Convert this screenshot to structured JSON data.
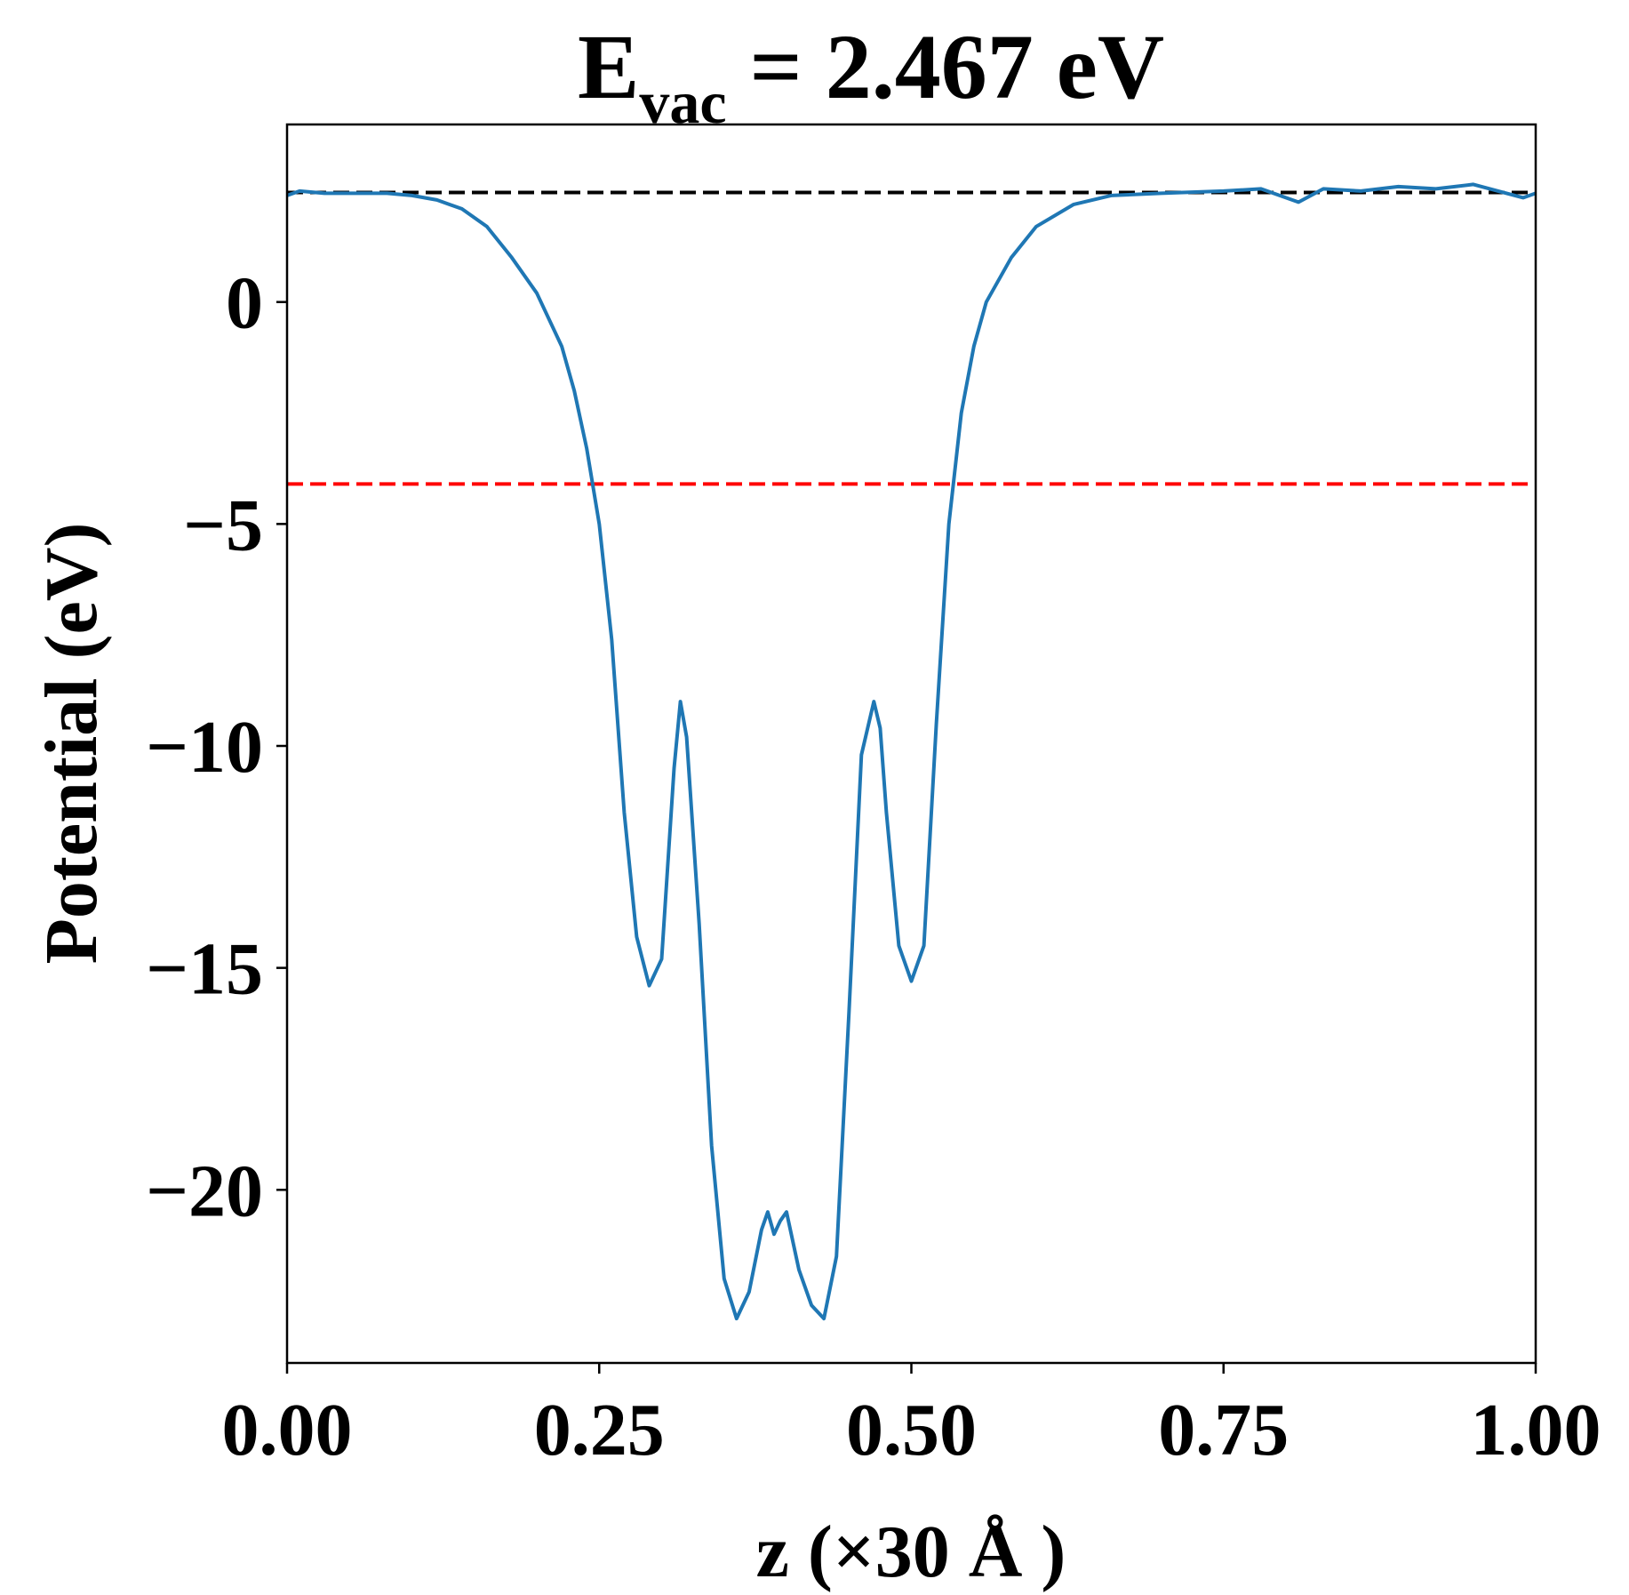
{
  "chart_data": {
    "type": "line",
    "title": {
      "main": "E",
      "subscript": "vac",
      "rest": " = 2.467 eV"
    },
    "xlabel": "z (×30 Å )",
    "ylabel": "Potential (eV)",
    "xlim": [
      0.0,
      1.0
    ],
    "ylim": [
      -23.9,
      4.0
    ],
    "xticks": [
      {
        "value": 0.0,
        "label": "0.00"
      },
      {
        "value": 0.25,
        "label": "0.25"
      },
      {
        "value": 0.5,
        "label": "0.50"
      },
      {
        "value": 0.75,
        "label": "0.75"
      },
      {
        "value": 1.0,
        "label": "1.00"
      }
    ],
    "yticks": [
      {
        "value": 0,
        "label": "0"
      },
      {
        "value": -5,
        "label": "−5"
      },
      {
        "value": -10,
        "label": "−10"
      },
      {
        "value": -15,
        "label": "−15"
      },
      {
        "value": -20,
        "label": "−20"
      }
    ],
    "grid": false,
    "colors": {
      "series": "#1f77b4",
      "vacuum_line": "#000000",
      "fermi_line": "#ff0000",
      "axes": "#000000"
    },
    "reference_lines": [
      {
        "y": 2.467,
        "color": "#000000",
        "style": "dashed"
      },
      {
        "y": -4.1,
        "color": "#ff0000",
        "style": "dashed"
      }
    ],
    "series": [
      {
        "x": [
          0.0,
          0.01,
          0.03,
          0.05,
          0.08,
          0.1,
          0.12,
          0.14,
          0.16,
          0.18,
          0.2,
          0.22,
          0.23,
          0.24,
          0.25,
          0.26,
          0.27,
          0.28,
          0.29,
          0.3,
          0.31,
          0.315,
          0.32,
          0.33,
          0.34,
          0.35,
          0.36,
          0.37,
          0.38,
          0.385,
          0.39,
          0.395,
          0.4,
          0.41,
          0.42,
          0.43,
          0.44,
          0.45,
          0.46,
          0.47,
          0.475,
          0.48,
          0.49,
          0.5,
          0.51,
          0.52,
          0.53,
          0.54,
          0.55,
          0.56,
          0.58,
          0.6,
          0.63,
          0.66,
          0.7,
          0.75,
          0.78,
          0.8,
          0.81,
          0.83,
          0.86,
          0.89,
          0.92,
          0.95,
          0.97,
          0.99,
          1.0
        ],
        "y": [
          2.4,
          2.5,
          2.45,
          2.45,
          2.45,
          2.4,
          2.3,
          2.1,
          1.7,
          1.0,
          0.2,
          -1.0,
          -2.0,
          -3.3,
          -5.0,
          -7.6,
          -11.5,
          -14.3,
          -15.4,
          -14.8,
          -10.5,
          -9.0,
          -9.8,
          -14.0,
          -19.0,
          -22.0,
          -22.9,
          -22.3,
          -20.9,
          -20.5,
          -21.0,
          -20.7,
          -20.5,
          -21.8,
          -22.6,
          -22.9,
          -21.5,
          -16.0,
          -10.2,
          -9.0,
          -9.6,
          -11.5,
          -14.5,
          -15.3,
          -14.5,
          -9.5,
          -5.0,
          -2.5,
          -1.0,
          0.0,
          1.0,
          1.7,
          2.2,
          2.4,
          2.45,
          2.5,
          2.55,
          2.35,
          2.25,
          2.55,
          2.5,
          2.6,
          2.55,
          2.65,
          2.5,
          2.35,
          2.45
        ]
      }
    ]
  }
}
